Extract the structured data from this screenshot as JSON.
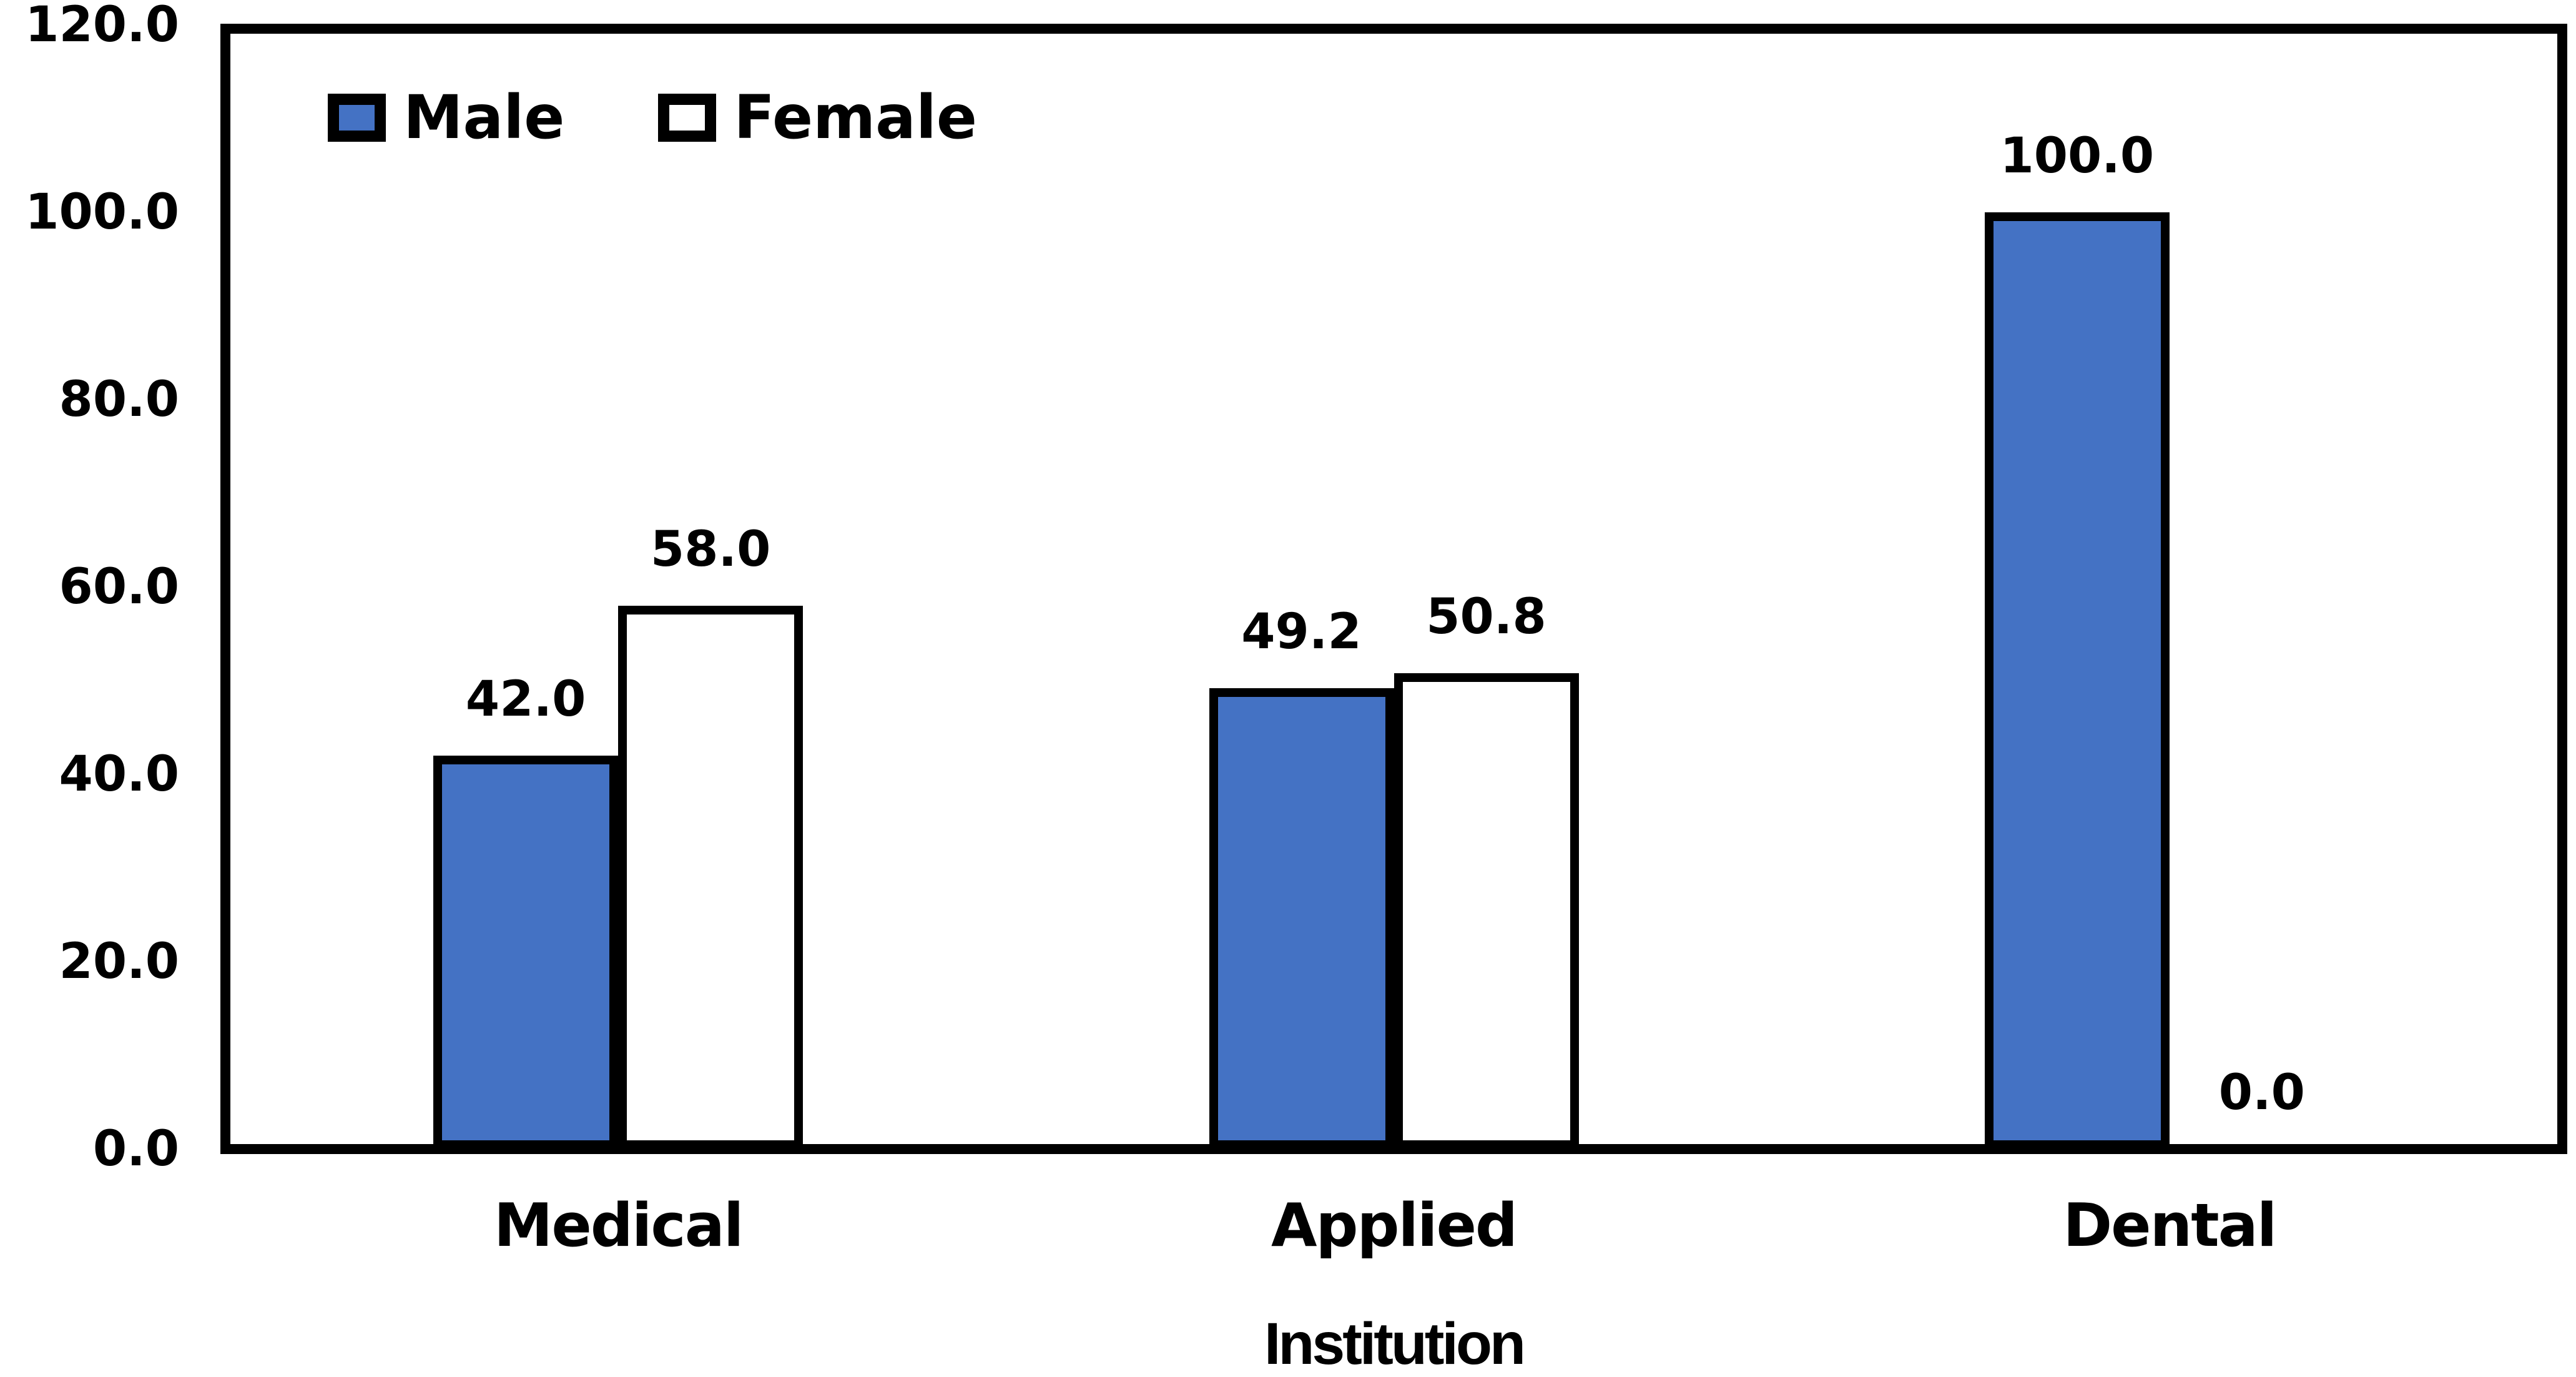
{
  "chart_data": {
    "type": "bar",
    "title": "",
    "xlabel": "Institution",
    "ylabel": "",
    "categories": [
      "Medical",
      "Applied",
      "Dental"
    ],
    "series": [
      {
        "name": "Male",
        "fill": "#4472C4",
        "border": "#000000",
        "values": [
          42.0,
          49.2,
          100.0
        ],
        "value_labels": [
          "42.0",
          "49.2",
          "100.0"
        ]
      },
      {
        "name": "Female",
        "fill": "#FFFFFF",
        "border": "#000000",
        "values": [
          58.0,
          50.8,
          0.0
        ],
        "value_labels": [
          "58.0",
          "50.8",
          "0.0"
        ]
      }
    ],
    "ylim": [
      0,
      120
    ],
    "yticks": [
      0,
      20,
      40,
      60,
      80,
      100,
      120
    ],
    "ytick_labels": [
      "0.0",
      "20.0",
      "40.0",
      "60.0",
      "80.0",
      "100.0",
      "120.0"
    ],
    "grid": false,
    "legend_position": "inside-top-left",
    "background_color": "#FFFFFF",
    "frame_color": "#000000"
  }
}
